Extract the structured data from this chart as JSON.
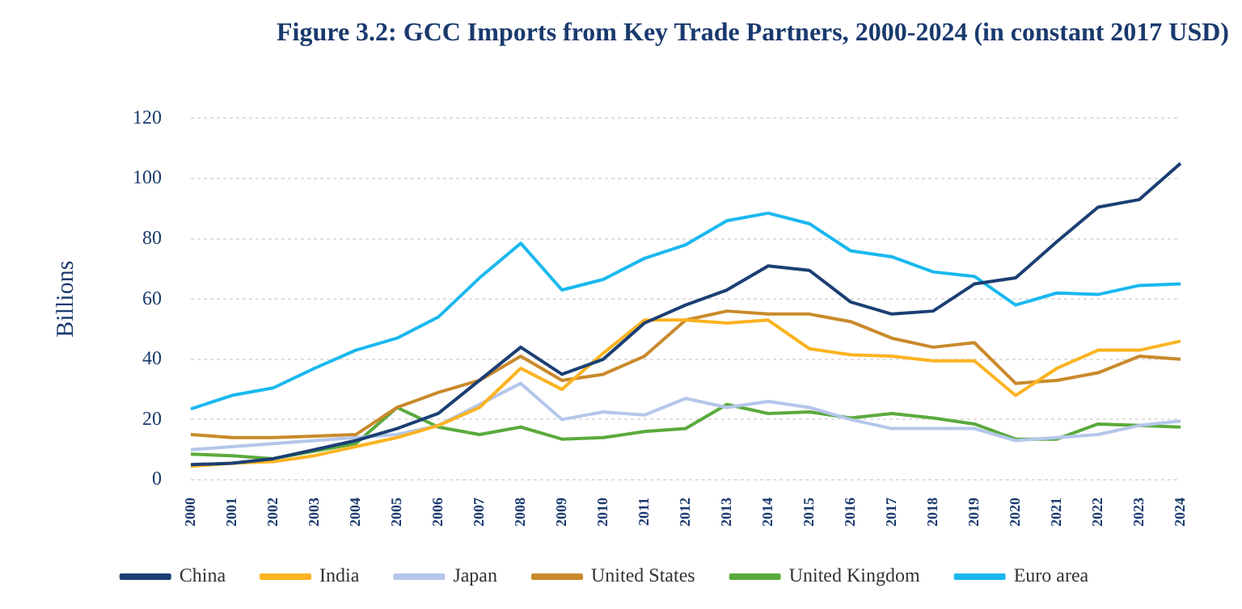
{
  "chart_data": {
    "type": "line",
    "title": "Figure 3.2: GCC Imports from Key Trade Partners, 2000-2024 (in constant 2017 USD)",
    "ylabel": "Billions",
    "categories": [
      "2000",
      "2001",
      "2002",
      "2003",
      "2004",
      "2005",
      "2006",
      "2007",
      "2008",
      "2009",
      "2010",
      "2011",
      "2012",
      "2013",
      "2014",
      "2015",
      "2016",
      "2017",
      "2018",
      "2019",
      "2020",
      "2021",
      "2022",
      "2023",
      "2024"
    ],
    "series": [
      {
        "name": "China",
        "color": "#1b3f73",
        "values": [
          5,
          5.5,
          7,
          10,
          13,
          17,
          22,
          33,
          44,
          35,
          40,
          52,
          58,
          63,
          71,
          69.5,
          59,
          55,
          56,
          65,
          67,
          79,
          90.5,
          93,
          105
        ]
      },
      {
        "name": "India",
        "color": "#fbb321",
        "values": [
          4.5,
          5.5,
          6,
          8,
          11,
          14,
          18,
          24,
          37,
          30,
          42,
          53,
          53,
          52,
          53,
          43.5,
          41.5,
          41,
          39.5,
          39.5,
          28,
          37,
          43,
          43,
          46
        ]
      },
      {
        "name": "Japan",
        "color": "#b4c6ea",
        "values": [
          10,
          11,
          12,
          13,
          14,
          15,
          18,
          25,
          32,
          20,
          22.5,
          21.5,
          27,
          24,
          26,
          24,
          20,
          17,
          17,
          17,
          13,
          14,
          15,
          18,
          19.5
        ]
      },
      {
        "name": "United States",
        "color": "#c98a2b",
        "values": [
          15,
          14,
          14,
          14.5,
          15,
          24,
          29,
          33,
          41,
          33,
          35,
          41,
          53,
          56,
          55,
          55,
          52.5,
          47,
          44,
          45.5,
          32,
          33,
          35.5,
          41,
          40
        ]
      },
      {
        "name": "United Kingdom",
        "color": "#5aaa3c",
        "values": [
          8.5,
          8,
          7,
          9.5,
          12,
          24,
          17.5,
          15,
          17.5,
          13.5,
          14,
          16,
          17,
          25,
          22,
          22.5,
          20.5,
          22,
          20.5,
          18.5,
          13.5,
          13.5,
          18.5,
          18,
          17.5
        ]
      },
      {
        "name": "Euro area",
        "color": "#1ab8ef",
        "values": [
          23.5,
          28,
          30.5,
          37,
          43,
          47,
          54,
          67,
          78.5,
          63,
          66.5,
          73.5,
          78,
          86,
          88.5,
          85,
          76,
          74,
          69,
          67.5,
          58,
          62,
          61.5,
          64.5,
          65
        ]
      }
    ],
    "ylim": [
      0,
      120
    ],
    "yticks": [
      0,
      20,
      40,
      60,
      80,
      100,
      120
    ],
    "grid": "y",
    "legend": "bottom",
    "marker": "none",
    "line_style": "solid"
  }
}
